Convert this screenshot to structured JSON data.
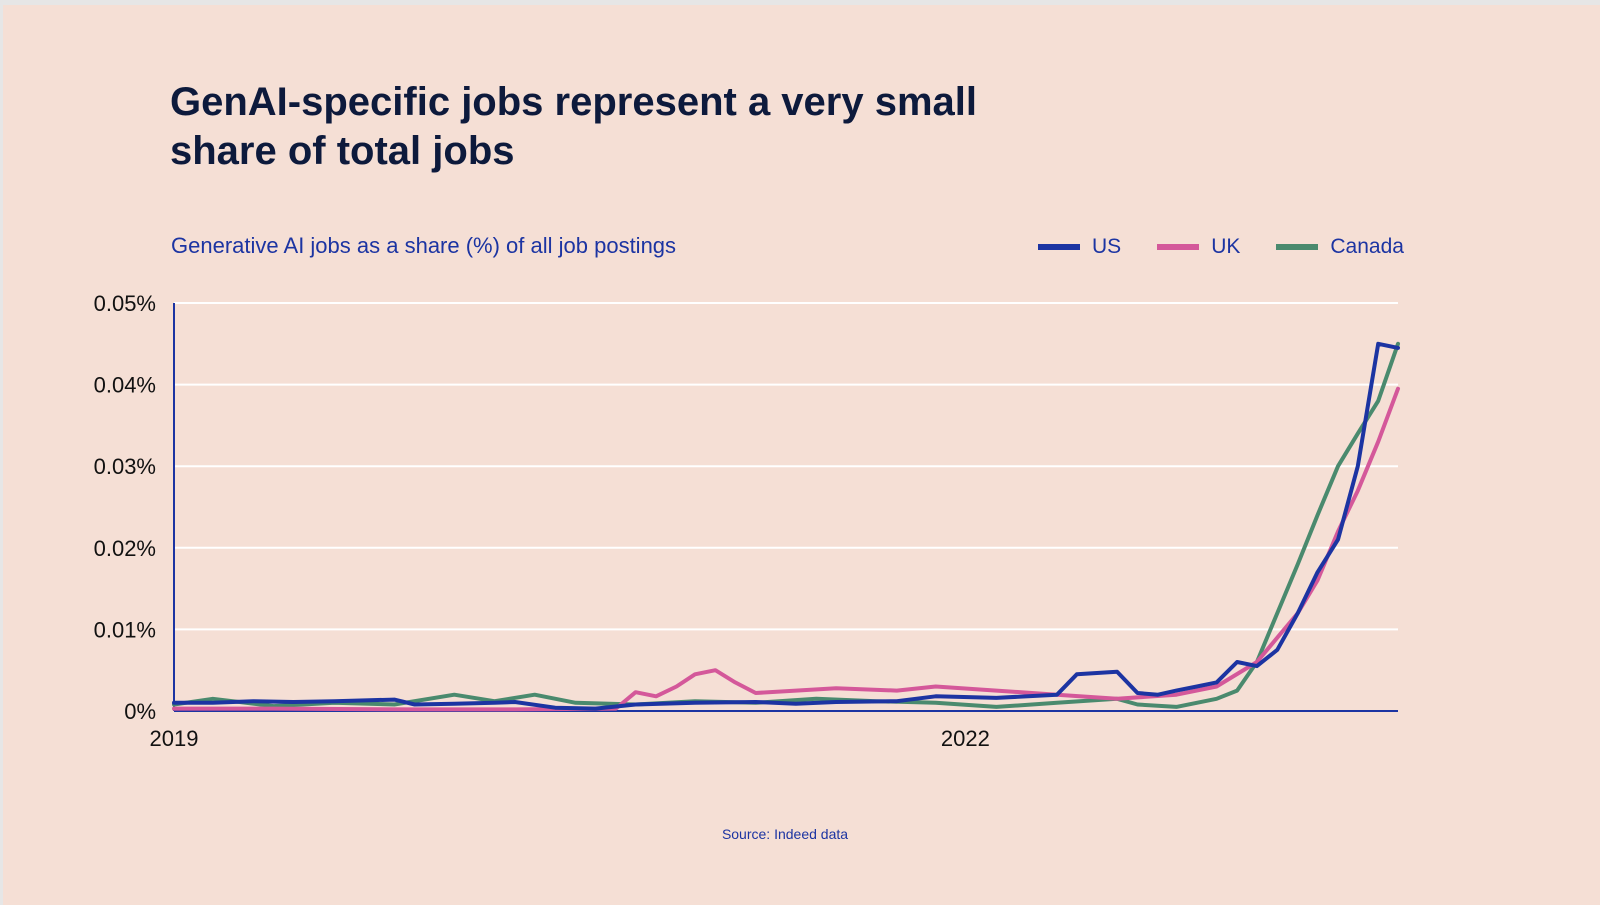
{
  "title": "GenAI-specific jobs represent a very small share of total jobs",
  "subtitle": "Generative AI jobs as a share (%) of all job postings",
  "source": "Source: Indeed data",
  "legend": [
    {
      "name": "US",
      "color": "#1c34a2"
    },
    {
      "name": "UK",
      "color": "#d4589a"
    },
    {
      "name": "Canada",
      "color": "#4a8a6e"
    }
  ],
  "chart_data": {
    "type": "line",
    "title": "GenAI-specific jobs represent a very small share of total jobs",
    "subtitle": "Generative AI jobs as a share (%) of all job postings",
    "xlabel": "",
    "ylabel": "",
    "xlim": [
      "2019-01-01",
      "2024-01-31"
    ],
    "ylim": [
      0,
      0.05
    ],
    "x_ticks": [
      {
        "label": "2019",
        "x": "2019-01-01"
      },
      {
        "label": "2022",
        "x": "2022-04-15"
      }
    ],
    "y_ticks": [
      {
        "label": "0%",
        "value": 0
      },
      {
        "label": "0.01%",
        "value": 0.01
      },
      {
        "label": "0.02%",
        "value": 0.02
      },
      {
        "label": "0.03%",
        "value": 0.03
      },
      {
        "label": "0.04%",
        "value": 0.04
      },
      {
        "label": "0.05%",
        "value": 0.05
      }
    ],
    "grid": true,
    "legend_position": "top-right",
    "series": [
      {
        "name": "US",
        "color": "#1c34a2",
        "x": [
          "2019-01-01",
          "2019-03-01",
          "2019-05-01",
          "2019-07-01",
          "2019-09-01",
          "2019-12-01",
          "2020-01-01",
          "2020-03-01",
          "2020-05-01",
          "2020-06-01",
          "2020-08-01",
          "2020-10-01",
          "2020-12-01",
          "2021-03-01",
          "2021-06-01",
          "2021-08-01",
          "2021-10-01",
          "2022-01-01",
          "2022-03-01",
          "2022-06-01",
          "2022-09-01",
          "2022-10-01",
          "2022-12-01",
          "2023-01-01",
          "2023-02-01",
          "2023-03-01",
          "2023-04-01",
          "2023-05-01",
          "2023-06-01",
          "2023-07-01",
          "2023-08-01",
          "2023-09-01",
          "2023-10-01",
          "2023-11-01",
          "2023-12-01",
          "2024-01-01",
          "2024-01-31"
        ],
        "values": [
          0.001,
          0.001,
          0.0012,
          0.0011,
          0.0012,
          0.0014,
          0.0008,
          0.0009,
          0.001,
          0.0011,
          0.0004,
          0.0003,
          0.0008,
          0.001,
          0.0011,
          0.0009,
          0.0011,
          0.0012,
          0.0018,
          0.0016,
          0.002,
          0.0045,
          0.0048,
          0.0022,
          0.002,
          0.0025,
          0.003,
          0.0035,
          0.006,
          0.0055,
          0.0075,
          0.012,
          0.017,
          0.021,
          0.03,
          0.045,
          0.0445
        ]
      },
      {
        "name": "UK",
        "color": "#d4589a",
        "x": [
          "2019-01-01",
          "2019-06-01",
          "2020-01-01",
          "2020-06-01",
          "2020-11-01",
          "2020-12-01",
          "2021-01-01",
          "2021-02-01",
          "2021-03-01",
          "2021-04-01",
          "2021-05-01",
          "2021-06-01",
          "2021-08-01",
          "2021-10-01",
          "2022-01-01",
          "2022-03-01",
          "2022-06-01",
          "2022-09-01",
          "2022-12-01",
          "2023-03-01",
          "2023-05-01",
          "2023-07-01",
          "2023-09-01",
          "2023-10-01",
          "2023-11-01",
          "2023-12-01",
          "2024-01-01",
          "2024-01-31"
        ],
        "values": [
          0.0003,
          0.0003,
          0.0002,
          0.0002,
          0.0003,
          0.0023,
          0.0018,
          0.003,
          0.0045,
          0.005,
          0.0035,
          0.0022,
          0.0025,
          0.0028,
          0.0025,
          0.003,
          0.0025,
          0.002,
          0.0015,
          0.002,
          0.003,
          0.006,
          0.012,
          0.016,
          0.022,
          0.027,
          0.033,
          0.0395
        ]
      },
      {
        "name": "Canada",
        "color": "#4a8a6e",
        "x": [
          "2019-01-01",
          "2019-03-01",
          "2019-06-01",
          "2019-09-01",
          "2019-12-01",
          "2020-03-01",
          "2020-05-01",
          "2020-07-01",
          "2020-09-01",
          "2020-12-01",
          "2021-03-01",
          "2021-06-01",
          "2021-09-01",
          "2021-12-01",
          "2022-03-01",
          "2022-06-01",
          "2022-09-01",
          "2022-12-01",
          "2023-01-01",
          "2023-03-01",
          "2023-05-01",
          "2023-06-01",
          "2023-07-01",
          "2023-08-01",
          "2023-09-01",
          "2023-10-01",
          "2023-11-01",
          "2023-12-01",
          "2024-01-01",
          "2024-01-31"
        ],
        "values": [
          0.0008,
          0.0015,
          0.0006,
          0.001,
          0.0008,
          0.002,
          0.0012,
          0.002,
          0.001,
          0.0008,
          0.0012,
          0.001,
          0.0015,
          0.0012,
          0.001,
          0.0005,
          0.001,
          0.0015,
          0.0008,
          0.0005,
          0.0015,
          0.0025,
          0.006,
          0.012,
          0.018,
          0.024,
          0.03,
          0.034,
          0.038,
          0.045
        ]
      }
    ]
  }
}
